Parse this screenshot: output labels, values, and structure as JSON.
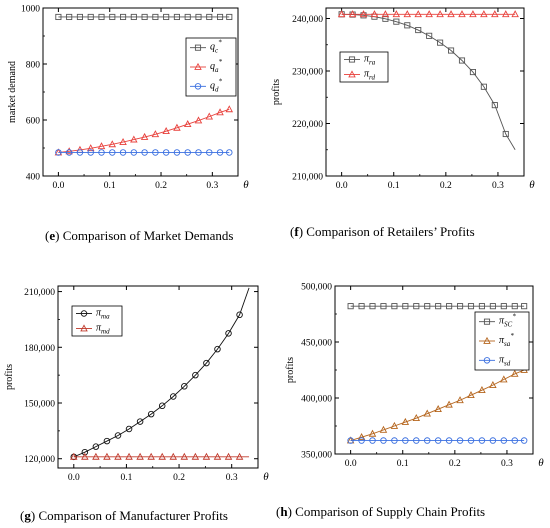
{
  "chart_data": [
    {
      "id": "e",
      "type": "line",
      "caption_letter": "e",
      "caption_text": " Comparison of Market Demands",
      "xlabel": "θ",
      "ylabel": "market demand",
      "xlim": [
        -0.03,
        0.35
      ],
      "ylim": [
        400,
        1000
      ],
      "xticks": [
        0.0,
        0.1,
        0.2,
        0.3
      ],
      "xtick_labels": [
        "0.0",
        "0.1",
        "0.2",
        "0.3"
      ],
      "yticks": [
        400,
        600,
        800,
        1000
      ],
      "ytick_labels": [
        "400",
        "600",
        "800",
        "1000"
      ],
      "legend_position": "top-right",
      "x": [
        0.0,
        0.021,
        0.042,
        0.063,
        0.084,
        0.105,
        0.126,
        0.147,
        0.168,
        0.189,
        0.21,
        0.231,
        0.252,
        0.273,
        0.294,
        0.315,
        0.333
      ],
      "series": [
        {
          "name": "q",
          "sub": "c",
          "sup": "*",
          "color": "#555555",
          "marker": "square",
          "values": [
            968,
            968,
            968,
            968,
            968,
            968,
            968,
            968,
            968,
            968,
            968,
            968,
            968,
            968,
            968,
            968,
            968
          ]
        },
        {
          "name": "q",
          "sub": "a",
          "sup": "*",
          "color": "#e8413c",
          "marker": "triangle",
          "values": [
            484,
            488,
            493,
            499,
            506,
            513,
            521,
            530,
            539,
            549,
            560,
            572,
            585,
            598,
            612,
            627,
            638
          ]
        },
        {
          "name": "q",
          "sub": "d",
          "sup": "*",
          "color": "#3a6fe0",
          "marker": "circle",
          "values": [
            484,
            484,
            484,
            484,
            484,
            484,
            484,
            484,
            484,
            484,
            484,
            484,
            484,
            484,
            484,
            484,
            484
          ]
        }
      ]
    },
    {
      "id": "f",
      "type": "line",
      "caption_letter": "f",
      "caption_text": " Comparison of Retailers’ Profits",
      "xlabel": "θ",
      "ylabel": "profits",
      "xlim": [
        -0.03,
        0.35
      ],
      "ylim": [
        210000,
        242000
      ],
      "xticks": [
        0.0,
        0.1,
        0.2,
        0.3
      ],
      "xtick_labels": [
        "0.0",
        "0.1",
        "0.2",
        "0.3"
      ],
      "yticks": [
        210000,
        220000,
        230000,
        240000
      ],
      "ytick_labels": [
        "210,000",
        "220,000",
        "230,000",
        "240,000"
      ],
      "legend_position": "top-left",
      "x": [
        0.0,
        0.021,
        0.042,
        0.063,
        0.084,
        0.105,
        0.126,
        0.147,
        0.168,
        0.189,
        0.21,
        0.231,
        0.252,
        0.273,
        0.294,
        0.315,
        0.333
      ],
      "series": [
        {
          "name": "π",
          "sub": "ra",
          "sup": "",
          "color": "#555555",
          "marker": "square",
          "values": [
            240800,
            240750,
            240600,
            240350,
            239950,
            239400,
            238700,
            237800,
            236700,
            235400,
            233900,
            232000,
            229800,
            227000,
            223500,
            218000,
            215000
          ],
          "marker_every": 1,
          "marker_until": 0.316
        },
        {
          "name": "π",
          "sub": "rd",
          "sup": "",
          "color": "#e8413c",
          "marker": "triangle",
          "values": [
            240800,
            240800,
            240800,
            240800,
            240800,
            240800,
            240800,
            240800,
            240800,
            240800,
            240800,
            240800,
            240800,
            240800,
            240800,
            240800,
            240800
          ]
        }
      ]
    },
    {
      "id": "g",
      "type": "line",
      "caption_letter": "g",
      "caption_text": " Comparison of Manufacturer Profits",
      "xlabel": "θ",
      "ylabel": "profits",
      "xlim": [
        -0.03,
        0.35
      ],
      "ylim": [
        115000,
        213000
      ],
      "xticks": [
        0.0,
        0.1,
        0.2,
        0.3
      ],
      "xtick_labels": [
        "0.0",
        "0.1",
        "0.2",
        "0.3"
      ],
      "yticks": [
        120000,
        150000,
        180000,
        210000
      ],
      "ytick_labels": [
        "120,000",
        "150,000",
        "180,000",
        "210,000"
      ],
      "legend_position": "top-left",
      "x": [
        0.0,
        0.021,
        0.042,
        0.063,
        0.084,
        0.105,
        0.126,
        0.147,
        0.168,
        0.189,
        0.21,
        0.231,
        0.252,
        0.273,
        0.294,
        0.315,
        0.333
      ],
      "series": [
        {
          "name": "π",
          "sub": "ma",
          "sup": "",
          "color": "#111111",
          "marker": "circle",
          "values": [
            121000,
            123500,
            126500,
            129500,
            132500,
            136000,
            140000,
            144000,
            148500,
            153500,
            159000,
            165000,
            171500,
            179000,
            187500,
            197500,
            212000
          ],
          "marker_until": 0.316
        },
        {
          "name": "π",
          "sub": "md",
          "sup": "",
          "color": "#c0392b",
          "marker": "triangle",
          "values": [
            121000,
            121000,
            121000,
            121000,
            121000,
            121000,
            121000,
            121000,
            121000,
            121000,
            121000,
            121000,
            121000,
            121000,
            121000,
            121000,
            121000
          ],
          "marker_until": 0.316
        }
      ]
    },
    {
      "id": "h",
      "type": "line",
      "caption_letter": "h",
      "caption_text": " Comparison of Supply Chain Profits",
      "xlabel": "θ",
      "ylabel": "profits",
      "xlim": [
        -0.03,
        0.35
      ],
      "ylim": [
        350000,
        500000
      ],
      "xticks": [
        0.0,
        0.1,
        0.2,
        0.3
      ],
      "xtick_labels": [
        "0.0",
        "0.1",
        "0.2",
        "0.3"
      ],
      "yticks": [
        350000,
        400000,
        450000,
        500000
      ],
      "ytick_labels": [
        "350,000",
        "400,000",
        "450,000",
        "500,000"
      ],
      "legend_position": "top-right",
      "x": [
        0.0,
        0.021,
        0.042,
        0.063,
        0.084,
        0.105,
        0.126,
        0.147,
        0.168,
        0.189,
        0.21,
        0.231,
        0.252,
        0.273,
        0.294,
        0.315,
        0.333
      ],
      "series": [
        {
          "name": "π",
          "sub": "SC",
          "sup": "*",
          "color": "#555555",
          "marker": "square",
          "values": [
            482000,
            482000,
            482000,
            482000,
            482000,
            482000,
            482000,
            482000,
            482000,
            482000,
            482000,
            482000,
            482000,
            482000,
            482000,
            482000,
            482000
          ]
        },
        {
          "name": "π",
          "sub": "sa",
          "sup": "*",
          "color": "#b5651d",
          "marker": "triangle",
          "values": [
            362000,
            365000,
            368000,
            371500,
            375000,
            378500,
            382000,
            386000,
            390000,
            394000,
            398000,
            402500,
            407000,
            411500,
            416500,
            421500,
            425000
          ]
        },
        {
          "name": "π",
          "sub": "sd",
          "sup": "",
          "color": "#3a6fe0",
          "marker": "circle",
          "values": [
            362000,
            362000,
            362000,
            362000,
            362000,
            362000,
            362000,
            362000,
            362000,
            362000,
            362000,
            362000,
            362000,
            362000,
            362000,
            362000,
            362000
          ]
        }
      ]
    }
  ]
}
